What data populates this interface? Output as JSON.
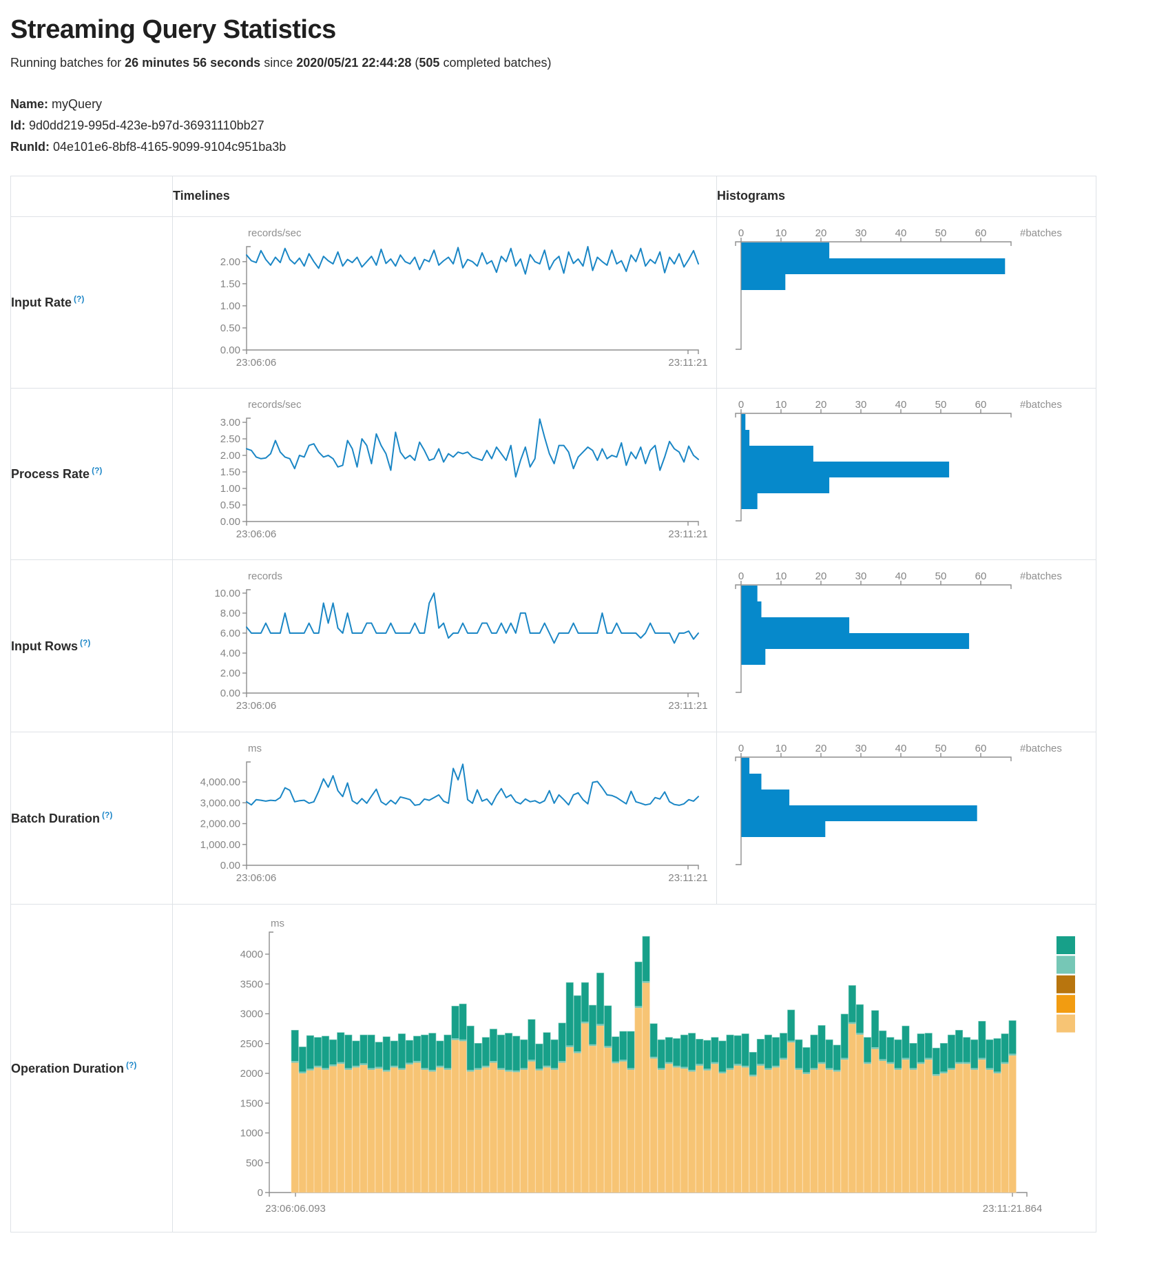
{
  "page": {
    "title": "Streaming Query Statistics",
    "subtitle_prefix": "Running batches for ",
    "duration": "26 minutes 56 seconds",
    "since_word": " since ",
    "start_time": "2020/05/21 22:44:28",
    "paren_open": " (",
    "batches_count": "505",
    "batches_suffix": " completed batches)",
    "name_label": "Name:",
    "name_value": "myQuery",
    "id_label": "Id:",
    "id_value": "9d0dd219-995d-423e-b97d-36931110bb27",
    "runid_label": "RunId:",
    "runid_value": "04e101e6-8bf8-4165-9099-9104c951ba3b"
  },
  "table": {
    "col_timelines": "Timelines",
    "col_histograms": "Histograms",
    "help_marker": "(?)"
  },
  "colors": {
    "timeline_line": "#1a86c5",
    "histogram_bar": "#0689cb",
    "axis": "#8d8d8d",
    "tick_text": "#848484"
  },
  "chart_data": [
    {
      "label": "Input Rate",
      "timeline": {
        "type": "line",
        "unit": "records/sec",
        "color": "#1a86c5",
        "x_start": "23:06:06",
        "x_end": "23:11:21",
        "ylim": [
          0,
          2.34
        ],
        "yticks": [
          {
            "v": 2,
            "t": "2.00"
          },
          {
            "v": 1.5,
            "t": "1.50"
          },
          {
            "v": 1,
            "t": "1.00"
          },
          {
            "v": 0.5,
            "t": "0.50"
          },
          {
            "v": 0,
            "t": "0.00"
          }
        ],
        "values": [
          2.15,
          2.02,
          1.98,
          2.25,
          2.05,
          1.92,
          2.1,
          1.98,
          2.3,
          2.05,
          1.95,
          2.08,
          1.9,
          2.18,
          2.0,
          1.85,
          2.12,
          2.02,
          1.95,
          2.22,
          1.9,
          2.05,
          1.98,
          2.1,
          1.88,
          2.0,
          2.12,
          1.92,
          2.28,
          1.96,
          2.06,
          1.9,
          2.15,
          2.0,
          1.95,
          2.1,
          1.82,
          2.05,
          2.0,
          2.26,
          1.92,
          2.02,
          2.1,
          1.95,
          2.32,
          1.86,
          2.05,
          2.0,
          1.9,
          2.2,
          1.95,
          2.02,
          1.76,
          2.12,
          2.0,
          2.3,
          1.9,
          2.06,
          1.72,
          2.16,
          2.0,
          1.95,
          2.26,
          1.82,
          2.02,
          2.12,
          1.74,
          2.22,
          1.96,
          2.06,
          1.9,
          2.34,
          1.8,
          2.1,
          2.0,
          1.92,
          2.26,
          1.95,
          2.02,
          1.78,
          2.15,
          2.0,
          2.3,
          1.9,
          2.05,
          1.96,
          2.22,
          1.75,
          2.1,
          1.95,
          2.18,
          1.88,
          2.05,
          2.25,
          1.95
        ]
      },
      "histogram": {
        "type": "bar-horizontal",
        "xlabel": "#batches",
        "color": "#0689cb",
        "xticks": [
          0,
          10,
          20,
          30,
          40,
          50,
          60
        ],
        "bin_counts": [
          22,
          66,
          11
        ]
      }
    },
    {
      "label": "Process Rate",
      "timeline": {
        "type": "line",
        "unit": "records/sec",
        "color": "#1a86c5",
        "x_start": "23:06:06",
        "x_end": "23:11:21",
        "ylim": [
          0,
          3.125
        ],
        "yticks": [
          {
            "v": 3,
            "t": "3.00"
          },
          {
            "v": 2.5,
            "t": "2.50"
          },
          {
            "v": 2,
            "t": "2.00"
          },
          {
            "v": 1.5,
            "t": "1.50"
          },
          {
            "v": 1,
            "t": "1.00"
          },
          {
            "v": 0.5,
            "t": "0.50"
          },
          {
            "v": 0,
            "t": "0.00"
          }
        ],
        "values": [
          2.2,
          2.15,
          1.95,
          1.9,
          1.92,
          2.05,
          2.45,
          2.1,
          1.95,
          1.9,
          1.6,
          2.0,
          1.95,
          2.3,
          2.35,
          2.1,
          1.95,
          2.0,
          1.9,
          1.65,
          1.7,
          2.45,
          2.2,
          1.65,
          2.5,
          2.3,
          1.75,
          2.65,
          2.3,
          2.05,
          1.55,
          2.7,
          2.1,
          1.9,
          2.0,
          1.85,
          2.4,
          2.15,
          1.85,
          1.9,
          2.2,
          1.8,
          2.05,
          1.95,
          2.1,
          2.05,
          2.1,
          1.95,
          1.9,
          1.85,
          2.15,
          1.9,
          2.25,
          2.05,
          1.85,
          2.3,
          1.35,
          1.85,
          2.25,
          1.65,
          1.9,
          3.1,
          2.55,
          2.05,
          1.75,
          2.3,
          2.3,
          2.1,
          1.6,
          1.95,
          2.1,
          2.25,
          2.15,
          1.85,
          2.2,
          1.9,
          2.0,
          1.95,
          2.38,
          1.7,
          2.1,
          1.9,
          2.25,
          1.75,
          2.15,
          2.3,
          1.55,
          1.95,
          2.42,
          2.2,
          2.1,
          1.8,
          2.28,
          2.0,
          1.88
        ]
      },
      "histogram": {
        "type": "bar-horizontal",
        "xlabel": "#batches",
        "color": "#0689cb",
        "xticks": [
          0,
          10,
          20,
          30,
          40,
          50,
          60
        ],
        "bin_counts": [
          1,
          2,
          18,
          52,
          22,
          4
        ]
      }
    },
    {
      "label": "Input Rows",
      "timeline": {
        "type": "line",
        "unit": "records",
        "color": "#1a86c5",
        "x_start": "23:06:06",
        "x_end": "23:11:21",
        "ylim": [
          0,
          10.34
        ],
        "yticks": [
          {
            "v": 10,
            "t": "10.00"
          },
          {
            "v": 8,
            "t": "8.00"
          },
          {
            "v": 6,
            "t": "6.00"
          },
          {
            "v": 4,
            "t": "4.00"
          },
          {
            "v": 2,
            "t": "2.00"
          },
          {
            "v": 0,
            "t": "0.00"
          }
        ],
        "values": [
          6.6,
          6,
          6,
          6,
          7,
          6,
          6,
          6,
          8,
          6,
          6,
          6,
          6,
          7,
          6,
          6,
          9,
          7,
          9,
          6.5,
          6,
          8,
          6,
          6,
          6,
          7,
          7,
          6,
          6,
          6,
          7,
          6,
          6,
          6,
          6,
          7,
          6,
          6,
          9,
          10,
          6.5,
          7,
          5.5,
          6,
          6,
          7,
          6,
          6,
          6,
          7,
          7,
          6,
          6,
          7,
          6,
          7,
          6,
          8,
          8,
          6,
          6,
          6,
          7,
          6,
          5,
          6,
          6,
          6,
          7,
          6,
          6,
          6,
          6,
          6,
          8,
          6,
          6,
          7,
          6,
          6,
          6,
          6,
          5.5,
          6,
          7,
          6,
          6,
          6,
          6,
          5,
          6,
          6,
          6.2,
          5.4,
          6
        ]
      },
      "histogram": {
        "type": "bar-horizontal",
        "xlabel": "#batches",
        "color": "#0689cb",
        "xticks": [
          0,
          10,
          20,
          30,
          40,
          50,
          60
        ],
        "bin_counts": [
          4,
          5,
          27,
          57,
          6
        ]
      }
    },
    {
      "label": "Batch Duration",
      "timeline": {
        "type": "line",
        "unit": "ms",
        "color": "#1a86c5",
        "x_start": "23:06:06",
        "x_end": "23:11:21",
        "ylim": [
          0,
          4960
        ],
        "yticks": [
          {
            "v": 4000,
            "t": "4,000.00"
          },
          {
            "v": 3000,
            "t": "3,000.00"
          },
          {
            "v": 2000,
            "t": "2,000.00"
          },
          {
            "v": 1000,
            "t": "1,000.00"
          },
          {
            "v": 0,
            "t": "0.00"
          }
        ],
        "values": [
          3050,
          2900,
          3150,
          3120,
          3080,
          3120,
          3100,
          3250,
          3720,
          3600,
          3050,
          3100,
          3120,
          2980,
          3050,
          3550,
          4150,
          3750,
          4300,
          3580,
          3300,
          3950,
          3100,
          2950,
          3200,
          2980,
          3320,
          3650,
          3050,
          2900,
          3120,
          2950,
          3280,
          3220,
          3150,
          2880,
          2920,
          3180,
          3120,
          3250,
          3380,
          3080,
          2980,
          4650,
          4100,
          4850,
          3150,
          2980,
          3620,
          3080,
          3180,
          2900,
          3350,
          3680,
          3250,
          3380,
          3050,
          2950,
          3180,
          3050,
          3100,
          2980,
          3100,
          3580,
          2980,
          3380,
          3150,
          2900,
          3380,
          3480,
          3150,
          2950,
          3980,
          4020,
          3720,
          3380,
          3350,
          3250,
          3100,
          2950,
          3550,
          3050,
          2980,
          2900,
          2950,
          3250,
          3180,
          3520,
          3050,
          2920,
          2880,
          2950,
          3150,
          3080,
          3300
        ]
      },
      "histogram": {
        "type": "bar-horizontal",
        "xlabel": "#batches",
        "color": "#0689cb",
        "xticks": [
          0,
          10,
          20,
          30,
          40,
          50,
          60
        ],
        "bin_counts": [
          2,
          5,
          12,
          59,
          21
        ]
      }
    },
    {
      "label": "Operation Duration",
      "chart": {
        "type": "stacked-bar",
        "unit": "ms",
        "x_start": "23:06:06.093",
        "x_end": "23:11:21.864",
        "ylim": [
          0,
          4000
        ],
        "yticks": [
          {
            "v": 4000,
            "t": "4000"
          },
          {
            "v": 3500,
            "t": "3500"
          },
          {
            "v": 3000,
            "t": "3000"
          },
          {
            "v": 2500,
            "t": "2500"
          },
          {
            "v": 2000,
            "t": "2000"
          },
          {
            "v": 1500,
            "t": "1500"
          },
          {
            "v": 1000,
            "t": "1000"
          },
          {
            "v": 500,
            "t": "500"
          },
          {
            "v": 0,
            "t": "0"
          }
        ],
        "series": [
          {
            "name": "bottom-segment-tan",
            "color": "#f7c474",
            "edge": "#fbdaa6",
            "values": [
              2180,
              2000,
              2050,
              2100,
              2060,
              2120,
              2160,
              2060,
              2100,
              2140,
              2060,
              2080,
              2030,
              2100,
              2060,
              2150,
              2180,
              2060,
              2030,
              2100,
              2060,
              2560,
              2540,
              2030,
              2060,
              2100,
              2180,
              2060,
              2030,
              2020,
              2060,
              2200,
              2050,
              2100,
              2060,
              2180,
              2440,
              2340,
              2840,
              2460,
              2800,
              2430,
              2170,
              2200,
              2060,
              3100,
              3520,
              2250,
              2060,
              2160,
              2100,
              2080,
              2030,
              2130,
              2050,
              2160,
              2000,
              2060,
              2130,
              2100,
              1950,
              2130,
              2060,
              2100,
              2230,
              2520,
              2060,
              1990,
              2060,
              2160,
              2060,
              2030,
              2230,
              2830,
              2650,
              2160,
              2410,
              2210,
              2160,
              2060,
              2230,
              2060,
              2160,
              2230,
              1960,
              2000,
              2060,
              2160,
              2160,
              2060,
              2230,
              2060,
              2000,
              2160,
              2300
            ]
          },
          {
            "name": "middle-segment-light-teal",
            "color": "#76c7b6",
            "constant": 25
          },
          {
            "name": "top-segment-teal",
            "color": "#17a089",
            "edge": "#86cfc1",
            "values": [
              520,
              420,
              560,
              480,
              540,
              420,
              500,
              560,
              420,
              480,
              560,
              420,
              560,
              420,
              580,
              380,
              420,
              560,
              620,
              420,
              560,
              545,
              600,
              740,
              420,
              480,
              540,
              560,
              620,
              580,
              480,
              680,
              420,
              560,
              480,
              640,
              1060,
              940,
              660,
              660,
              860,
              680,
              420,
              480,
              620,
              745,
              755,
              560,
              480,
              420,
              460,
              540,
              620,
              420,
              480,
              420,
              520,
              560,
              480,
              540,
              380,
              420,
              560,
              480,
              420,
              520,
              480,
              420,
              560,
              620,
              480,
              420,
              740,
              620,
              480,
              420,
              620,
              480,
              420,
              480,
              540,
              420,
              480,
              420,
              440,
              480,
              560,
              540,
              420,
              480,
              620,
              480,
              560,
              480,
              560
            ]
          }
        ],
        "legend_swatches": [
          "#17a089",
          "#76c7b6",
          "#b8750e",
          "#f29c11",
          "#f7c474"
        ]
      }
    }
  ]
}
